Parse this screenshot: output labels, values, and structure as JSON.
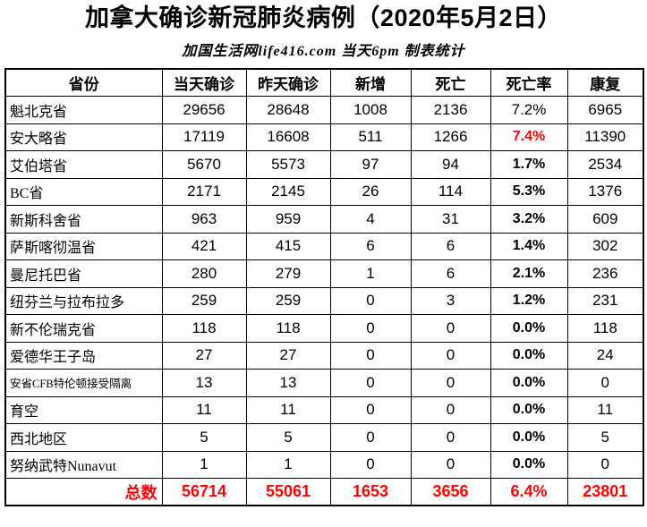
{
  "page": {
    "background": "#ffffff",
    "text_color": "#000000",
    "accent_red": "#ff0000"
  },
  "header": {
    "title": "加拿大确诊新冠肺炎病例（2020年5月2日）",
    "subtitle": "加国生活网life416.com 当天6pm 制表统计"
  },
  "table": {
    "columns": [
      "省份",
      "当天确诊",
      "昨天确诊",
      "新增",
      "死亡",
      "死亡率",
      "康复"
    ],
    "rows": [
      {
        "province": "魁北克省",
        "today": "29656",
        "yesterday": "28648",
        "added": "1008",
        "deaths": "2136",
        "death_rate": "7.2%",
        "recovered": "6965",
        "rate_bold": false,
        "rate_red": false,
        "small": false
      },
      {
        "province": "安大略省",
        "today": "17119",
        "yesterday": "16608",
        "added": "511",
        "deaths": "1266",
        "death_rate": "7.4%",
        "recovered": "11390",
        "rate_bold": true,
        "rate_red": true,
        "small": false
      },
      {
        "province": "艾伯塔省",
        "today": "5670",
        "yesterday": "5573",
        "added": "97",
        "deaths": "94",
        "death_rate": "1.7%",
        "recovered": "2534",
        "rate_bold": true,
        "rate_red": false,
        "small": false
      },
      {
        "province": "BC省",
        "today": "2171",
        "yesterday": "2145",
        "added": "26",
        "deaths": "114",
        "death_rate": "5.3%",
        "recovered": "1376",
        "rate_bold": true,
        "rate_red": false,
        "small": false
      },
      {
        "province": "新斯科舍省",
        "today": "963",
        "yesterday": "959",
        "added": "4",
        "deaths": "31",
        "death_rate": "3.2%",
        "recovered": "609",
        "rate_bold": true,
        "rate_red": false,
        "small": false
      },
      {
        "province": "萨斯喀彻温省",
        "today": "421",
        "yesterday": "415",
        "added": "6",
        "deaths": "6",
        "death_rate": "1.4%",
        "recovered": "302",
        "rate_bold": true,
        "rate_red": false,
        "small": false
      },
      {
        "province": "曼尼托巴省",
        "today": "280",
        "yesterday": "279",
        "added": "1",
        "deaths": "6",
        "death_rate": "2.1%",
        "recovered": "236",
        "rate_bold": true,
        "rate_red": false,
        "small": false
      },
      {
        "province": "纽芬兰与拉布拉多",
        "today": "259",
        "yesterday": "259",
        "added": "0",
        "deaths": "3",
        "death_rate": "1.2%",
        "recovered": "231",
        "rate_bold": true,
        "rate_red": false,
        "small": false
      },
      {
        "province": "新不伦瑞克省",
        "today": "118",
        "yesterday": "118",
        "added": "0",
        "deaths": "0",
        "death_rate": "0.0%",
        "recovered": "118",
        "rate_bold": true,
        "rate_red": false,
        "small": false
      },
      {
        "province": "爱德华王子岛",
        "today": "27",
        "yesterday": "27",
        "added": "0",
        "deaths": "0",
        "death_rate": "0.0%",
        "recovered": "24",
        "rate_bold": true,
        "rate_red": false,
        "small": false
      },
      {
        "province": "安省CFB特伦顿接受隔离",
        "today": "13",
        "yesterday": "13",
        "added": "0",
        "deaths": "0",
        "death_rate": "0.0%",
        "recovered": "0",
        "rate_bold": true,
        "rate_red": false,
        "small": true
      },
      {
        "province": "育空",
        "today": "11",
        "yesterday": "11",
        "added": "0",
        "deaths": "0",
        "death_rate": "0.0%",
        "recovered": "11",
        "rate_bold": true,
        "rate_red": false,
        "small": false
      },
      {
        "province": "西北地区",
        "today": "5",
        "yesterday": "5",
        "added": "0",
        "deaths": "0",
        "death_rate": "0.0%",
        "recovered": "5",
        "rate_bold": true,
        "rate_red": false,
        "small": false
      },
      {
        "province": "努纳武特Nunavut",
        "today": "1",
        "yesterday": "1",
        "added": "0",
        "deaths": "0",
        "death_rate": "0.0%",
        "recovered": "0",
        "rate_bold": true,
        "rate_red": false,
        "small": false
      }
    ],
    "total": {
      "label": "总数",
      "today": "56714",
      "yesterday": "55061",
      "added": "1653",
      "deaths": "3656",
      "death_rate": "6.4%",
      "recovered": "23801"
    }
  },
  "chart_data": {
    "type": "table",
    "title": "加拿大确诊新冠肺炎病例（2020年5月2日）",
    "subtitle": "加国生活网life416.com 当天6pm 制表统计",
    "columns": [
      "省份",
      "当天确诊",
      "昨天确诊",
      "新增",
      "死亡",
      "死亡率",
      "康复"
    ],
    "rows": [
      [
        "魁北克省",
        29656,
        28648,
        1008,
        2136,
        "7.2%",
        6965
      ],
      [
        "安大略省",
        17119,
        16608,
        511,
        1266,
        "7.4%",
        11390
      ],
      [
        "艾伯塔省",
        5670,
        5573,
        97,
        94,
        "1.7%",
        2534
      ],
      [
        "BC省",
        2171,
        2145,
        26,
        114,
        "5.3%",
        1376
      ],
      [
        "新斯科舍省",
        963,
        959,
        4,
        31,
        "3.2%",
        609
      ],
      [
        "萨斯喀彻温省",
        421,
        415,
        6,
        6,
        "1.4%",
        302
      ],
      [
        "曼尼托巴省",
        280,
        279,
        1,
        6,
        "2.1%",
        236
      ],
      [
        "纽芬兰与拉布拉多",
        259,
        259,
        0,
        3,
        "1.2%",
        231
      ],
      [
        "新不伦瑞克省",
        118,
        118,
        0,
        0,
        "0.0%",
        118
      ],
      [
        "爱德华王子岛",
        27,
        27,
        0,
        0,
        "0.0%",
        24
      ],
      [
        "安省CFB特伦顿接受隔离",
        13,
        13,
        0,
        0,
        "0.0%",
        0
      ],
      [
        "育空",
        11,
        11,
        0,
        0,
        "0.0%",
        11
      ],
      [
        "西北地区",
        5,
        5,
        0,
        0,
        "0.0%",
        5
      ],
      [
        "努纳武特Nunavut",
        1,
        1,
        0,
        0,
        "0.0%",
        0
      ]
    ],
    "totals": [
      "总数",
      56714,
      55061,
      1653,
      3656,
      "6.4%",
      23801
    ],
    "highlights": {
      "red_death_rate_row": "安大略省",
      "totals_row_color": "#ff0000"
    }
  }
}
